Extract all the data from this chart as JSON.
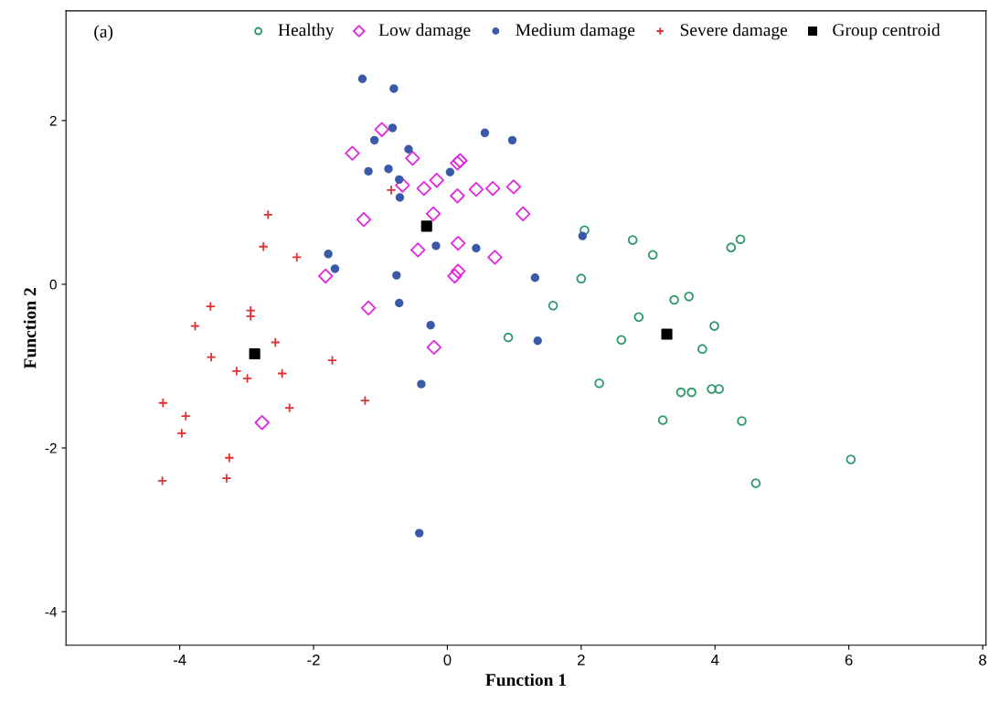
{
  "chart_data": {
    "type": "scatter",
    "xlabel": "Function 1",
    "ylabel": "Function 2",
    "annotations": [
      "(a)"
    ],
    "xlim": [
      -5.7,
      8.05
    ],
    "xticks": [
      -4,
      -2,
      0,
      2,
      4,
      6,
      8
    ],
    "ylim": [
      -4.41,
      3.34
    ],
    "yticks": [
      -4,
      -2,
      0,
      2
    ],
    "grid": false,
    "legend": "top",
    "series": [
      {
        "name": "Healthy",
        "color": "#2e9a6a",
        "marker": "circle",
        "x": [
          2.05,
          2.77,
          3.07,
          4.38,
          4.24,
          2.0,
          1.58,
          0.91,
          2.86,
          3.39,
          3.61,
          3.99,
          2.6,
          3.81,
          2.27,
          3.49,
          3.65,
          3.95,
          4.06,
          3.22,
          4.4,
          6.03,
          4.61
        ],
        "values": [
          0.66,
          0.54,
          0.36,
          0.55,
          0.45,
          0.07,
          -0.26,
          -0.65,
          -0.4,
          -0.19,
          -0.15,
          -0.51,
          -0.68,
          -0.79,
          -1.21,
          -1.32,
          -1.32,
          -1.28,
          -1.28,
          -1.66,
          -1.67,
          -2.14,
          -2.43
        ]
      },
      {
        "name": "Low damage",
        "color": "#e028e0",
        "marker": "diamond",
        "x": [
          -0.98,
          -1.42,
          -0.52,
          0.15,
          0.19,
          -0.16,
          -0.67,
          -0.35,
          0.15,
          0.43,
          0.68,
          0.99,
          -0.21,
          1.13,
          -1.25,
          0.16,
          -0.44,
          0.71,
          0.16,
          0.11,
          -1.82,
          -1.18,
          -0.2,
          -2.77
        ],
        "values": [
          1.89,
          1.6,
          1.54,
          1.48,
          1.51,
          1.27,
          1.21,
          1.17,
          1.08,
          1.16,
          1.17,
          1.19,
          0.86,
          0.86,
          0.79,
          0.5,
          0.42,
          0.33,
          0.16,
          0.1,
          0.1,
          -0.29,
          -0.77,
          -1.69
        ]
      },
      {
        "name": "Medium damage",
        "color": "#3a5aa8",
        "marker": "circle_filled",
        "x": [
          -1.27,
          -0.8,
          -0.82,
          -1.09,
          -0.58,
          -1.18,
          -0.88,
          -0.72,
          -0.71,
          0.04,
          0.56,
          0.97,
          -0.17,
          0.43,
          -0.76,
          -0.72,
          -0.25,
          2.02,
          1.31,
          1.35,
          -0.39,
          -0.42,
          -1.78,
          -1.68
        ],
        "values": [
          2.51,
          2.39,
          1.91,
          1.76,
          1.65,
          1.38,
          1.41,
          1.28,
          1.06,
          1.37,
          1.85,
          1.76,
          0.47,
          0.44,
          0.11,
          -0.23,
          -0.5,
          0.59,
          0.08,
          -0.69,
          -1.22,
          -3.04,
          0.37,
          0.19
        ]
      },
      {
        "name": "Severe damage",
        "color": "#e03030",
        "marker": "cross",
        "x": [
          -0.84,
          -2.68,
          -2.75,
          -2.25,
          -3.54,
          -2.94,
          -2.94,
          -3.77,
          -2.57,
          -3.53,
          -3.15,
          -2.99,
          -2.47,
          -1.72,
          -4.25,
          -3.91,
          -3.97,
          -2.36,
          -1.23,
          -3.26,
          -4.26,
          -3.3
        ],
        "values": [
          1.15,
          0.85,
          0.46,
          0.33,
          -0.27,
          -0.32,
          -0.39,
          -0.51,
          -0.71,
          -0.89,
          -1.06,
          -1.15,
          -1.09,
          -0.93,
          -1.45,
          -1.61,
          -1.82,
          -1.51,
          -1.42,
          -2.12,
          -2.4,
          -2.37
        ]
      },
      {
        "name": "Group centroid",
        "color": "#000000",
        "marker": "square",
        "x": [
          -0.31,
          -2.88,
          3.28
        ],
        "values": [
          0.71,
          -0.85,
          -0.61
        ]
      }
    ]
  }
}
